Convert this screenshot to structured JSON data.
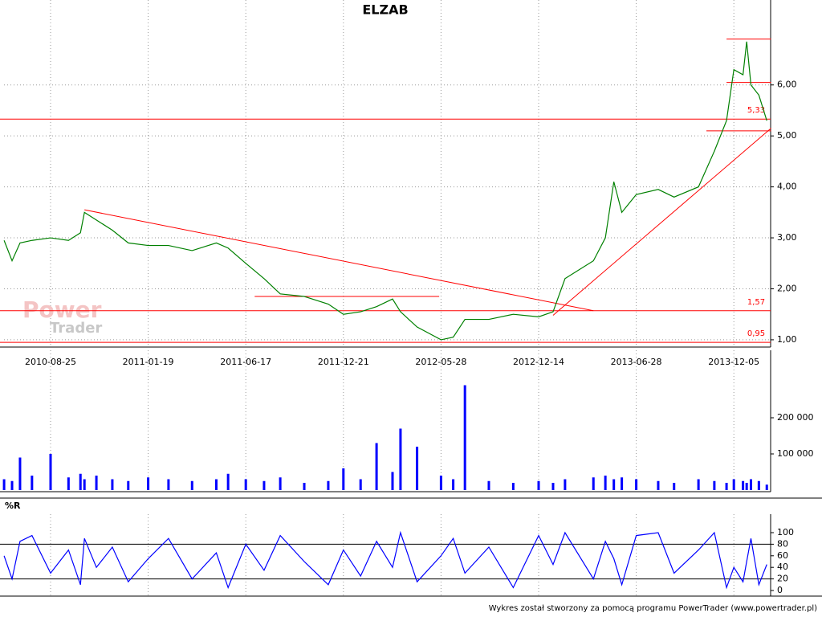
{
  "chart_data": [
    {
      "type": "line",
      "title": "ELZAB",
      "color": "#008000",
      "x": [
        "2010-06-16",
        "2010-06-28",
        "2010-07-10",
        "2010-07-28",
        "2010-08-25",
        "2010-09-21",
        "2010-10-09",
        "2010-10-15",
        "2010-11-02",
        "2010-11-26",
        "2010-12-20",
        "2011-01-19",
        "2011-02-19",
        "2011-03-27",
        "2011-05-03",
        "2011-05-21",
        "2011-06-17",
        "2011-07-22",
        "2011-08-22",
        "2011-10-07",
        "2011-11-22",
        "2011-12-21",
        "2012-01-18",
        "2012-02-13",
        "2012-03-10",
        "2012-03-23",
        "2012-04-19",
        "2012-05-28",
        "2012-06-22",
        "2012-07-16",
        "2012-09-03",
        "2012-10-23",
        "2012-12-14",
        "2013-01-12",
        "2013-02-05",
        "2013-04-03",
        "2013-04-27",
        "2013-05-14",
        "2013-05-30",
        "2013-06-28",
        "2013-08-03",
        "2013-08-29",
        "2013-10-08",
        "2013-11-03",
        "2013-11-23",
        "2013-12-05",
        "2013-12-20",
        "2013-12-26",
        "2014-01-02",
        "2014-01-15",
        "2014-01-28"
      ],
      "values": [
        2.95,
        2.55,
        2.9,
        2.95,
        3.0,
        2.95,
        3.1,
        3.5,
        3.35,
        3.15,
        2.9,
        2.85,
        2.85,
        2.75,
        2.9,
        2.8,
        2.5,
        2.2,
        1.9,
        1.85,
        1.7,
        1.5,
        1.55,
        1.65,
        1.8,
        1.55,
        1.25,
        1.0,
        1.05,
        1.4,
        1.4,
        1.5,
        1.45,
        1.55,
        2.2,
        2.55,
        3.0,
        4.1,
        3.5,
        3.85,
        3.95,
        3.8,
        4.0,
        4.7,
        5.3,
        6.3,
        6.2,
        6.85,
        6.0,
        5.8,
        5.3
      ],
      "ylim": [
        0.92,
        7.32
      ],
      "yticks": [
        {
          "value": 1,
          "label": "1,00"
        },
        {
          "value": 2,
          "label": "2,00"
        },
        {
          "value": 3,
          "label": "3,00"
        },
        {
          "value": 4,
          "label": "4,00"
        },
        {
          "value": 5,
          "label": "5,00"
        },
        {
          "value": 6,
          "label": "6,00"
        }
      ],
      "xticks": [
        "2010-08-25",
        "2011-01-19",
        "2011-06-17",
        "2011-12-21",
        "2012-05-28",
        "2012-12-14",
        "2013-06-28",
        "2013-12-05"
      ],
      "grid": true,
      "levels": [
        {
          "value": 5.33,
          "label": "5,33"
        },
        {
          "value": 1.57,
          "label": "1,57"
        },
        {
          "value": 0.95,
          "label": "0,95"
        }
      ],
      "level_color": "#ff0000",
      "trendlines": [
        {
          "from": [
            "2010-10-15",
            3.55
          ],
          "to": [
            "2013-04-03",
            1.57
          ]
        },
        {
          "from": [
            "2013-01-12",
            1.48
          ],
          "to": [
            "2014-02-04",
            5.15
          ]
        },
        {
          "from": [
            "2011-07-04",
            1.85
          ],
          "to": [
            "2012-05-25",
            1.85
          ]
        },
        {
          "from": [
            "2013-11-23",
            6.9
          ],
          "to": [
            "2014-02-04",
            6.9
          ]
        },
        {
          "from": [
            "2013-11-23",
            6.05
          ],
          "to": [
            "2014-02-04",
            6.05
          ]
        },
        {
          "from": [
            "2013-10-21",
            5.1
          ],
          "to": [
            "2014-02-04",
            5.1
          ]
        }
      ],
      "watermark": [
        "Power",
        "Trader"
      ]
    },
    {
      "type": "bar",
      "color": "#0000ff",
      "x": [
        "2010-06-16",
        "2010-06-28",
        "2010-07-10",
        "2010-07-28",
        "2010-08-25",
        "2010-09-21",
        "2010-10-09",
        "2010-10-15",
        "2010-11-02",
        "2010-11-26",
        "2010-12-20",
        "2011-01-19",
        "2011-02-19",
        "2011-03-27",
        "2011-05-03",
        "2011-05-21",
        "2011-06-17",
        "2011-07-22",
        "2011-08-22",
        "2011-10-07",
        "2011-11-22",
        "2011-12-21",
        "2012-01-18",
        "2012-02-13",
        "2012-03-10",
        "2012-03-23",
        "2012-04-19",
        "2012-05-28",
        "2012-06-22",
        "2012-07-16",
        "2012-09-03",
        "2012-10-23",
        "2012-12-14",
        "2013-01-12",
        "2013-02-05",
        "2013-04-03",
        "2013-04-27",
        "2013-05-14",
        "2013-05-30",
        "2013-06-28",
        "2013-08-03",
        "2013-08-29",
        "2013-10-08",
        "2013-11-03",
        "2013-11-23",
        "2013-12-05",
        "2013-12-20",
        "2013-12-26",
        "2014-01-02",
        "2014-01-15",
        "2014-01-28"
      ],
      "values": [
        30000,
        25000,
        90000,
        40000,
        100000,
        35000,
        45000,
        30000,
        40000,
        30000,
        25000,
        35000,
        30000,
        25000,
        30000,
        45000,
        30000,
        25000,
        35000,
        20000,
        25000,
        60000,
        30000,
        130000,
        50000,
        170000,
        120000,
        40000,
        30000,
        290000,
        25000,
        20000,
        25000,
        20000,
        30000,
        35000,
        40000,
        30000,
        35000,
        30000,
        25000,
        20000,
        30000,
        25000,
        20000,
        30000,
        25000,
        20000,
        30000,
        25000,
        15000
      ],
      "ylim": [
        0,
        320000
      ],
      "yticks": [
        {
          "value": 100000,
          "label": "100 000"
        },
        {
          "value": 200000,
          "label": "200 000"
        }
      ],
      "xticks": [
        "2010-08-25",
        "2011-01-19",
        "2011-06-17",
        "2011-12-21",
        "2012-05-28",
        "2012-12-14",
        "2013-06-28",
        "2013-12-05"
      ],
      "grid": true
    },
    {
      "type": "line",
      "title": "%R",
      "color": "#0000ff",
      "x": [
        "2010-06-16",
        "2010-06-28",
        "2010-07-10",
        "2010-07-28",
        "2010-08-25",
        "2010-09-21",
        "2010-10-09",
        "2010-10-15",
        "2010-11-02",
        "2010-11-26",
        "2010-12-20",
        "2011-01-19",
        "2011-02-19",
        "2011-03-27",
        "2011-05-03",
        "2011-05-21",
        "2011-06-17",
        "2011-07-22",
        "2011-08-22",
        "2011-10-07",
        "2011-11-22",
        "2011-12-21",
        "2012-01-18",
        "2012-02-13",
        "2012-03-10",
        "2012-03-23",
        "2012-04-19",
        "2012-05-28",
        "2012-06-22",
        "2012-07-16",
        "2012-09-03",
        "2012-10-23",
        "2012-12-14",
        "2013-01-12",
        "2013-02-05",
        "2013-04-03",
        "2013-04-27",
        "2013-05-14",
        "2013-05-30",
        "2013-06-28",
        "2013-08-03",
        "2013-08-29",
        "2013-10-08",
        "2013-11-03",
        "2013-11-23",
        "2013-12-05",
        "2013-12-20",
        "2013-12-26",
        "2014-01-02",
        "2014-01-15",
        "2014-01-28"
      ],
      "values": [
        60,
        20,
        85,
        95,
        30,
        70,
        10,
        90,
        40,
        75,
        15,
        55,
        90,
        20,
        65,
        5,
        80,
        35,
        95,
        50,
        10,
        70,
        25,
        85,
        40,
        100,
        15,
        60,
        90,
        30,
        75,
        5,
        95,
        45,
        100,
        20,
        85,
        55,
        10,
        95,
        100,
        30,
        70,
        100,
        5,
        40,
        15,
        50,
        90,
        10,
        45
      ],
      "ylim": [
        0,
        100
      ],
      "yticks": [
        0,
        20,
        40,
        60,
        80,
        100
      ],
      "xticks": [
        "2010-08-25",
        "2011-01-19",
        "2011-06-17",
        "2011-12-21",
        "2012-05-28",
        "2012-12-14",
        "2013-06-28",
        "2013-12-05"
      ],
      "grid": true,
      "levels": [
        20,
        80
      ],
      "level_color": "#000000"
    }
  ],
  "footer": "Wykres został stworzony za pomocą programu PowerTrader (www.powertrader.pl)"
}
